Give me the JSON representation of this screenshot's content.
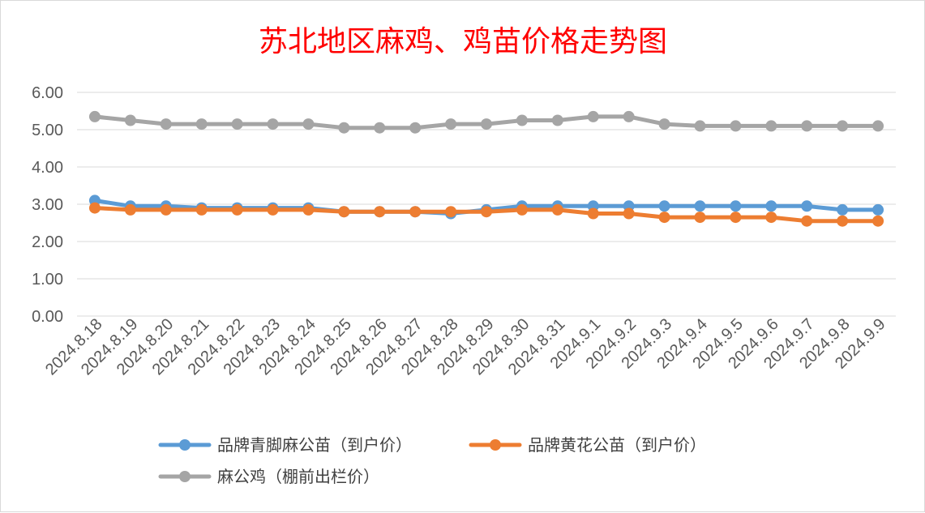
{
  "chart_data": {
    "type": "line",
    "title": "苏北地区麻鸡、鸡苗价格走势图",
    "xlabel": "",
    "ylabel": "",
    "ylim": [
      0,
      6
    ],
    "yticks": [
      "0.00",
      "1.00",
      "2.00",
      "3.00",
      "4.00",
      "5.00",
      "6.00"
    ],
    "grid": true,
    "legend_position": "bottom",
    "categories": [
      "2024.8.18",
      "2024.8.19",
      "2024.8.20",
      "2024.8.21",
      "2024.8.22",
      "2024.8.23",
      "2024.8.24",
      "2024.8.25",
      "2024.8.26",
      "2024.8.27",
      "2024.8.28",
      "2024.8.29",
      "2024.8.30",
      "2024.8.31",
      "2024.9.1",
      "2024.9.2",
      "2024.9.3",
      "2024.9.4",
      "2024.9.5",
      "2024.9.6",
      "2024.9.7",
      "2024.9.8",
      "2024.9.9"
    ],
    "series": [
      {
        "name": "品牌青脚麻公苗（到户价）",
        "color": "#5b9bd5",
        "values": [
          3.1,
          2.95,
          2.95,
          2.9,
          2.9,
          2.9,
          2.9,
          2.8,
          2.8,
          2.8,
          2.75,
          2.85,
          2.95,
          2.95,
          2.95,
          2.95,
          2.95,
          2.95,
          2.95,
          2.95,
          2.95,
          2.85,
          2.85
        ]
      },
      {
        "name": "品牌黄花公苗（到户价）",
        "color": "#ed7d31",
        "values": [
          2.9,
          2.85,
          2.85,
          2.85,
          2.85,
          2.85,
          2.85,
          2.8,
          2.8,
          2.8,
          2.8,
          2.8,
          2.85,
          2.85,
          2.75,
          2.75,
          2.65,
          2.65,
          2.65,
          2.65,
          2.55,
          2.55,
          2.55
        ]
      },
      {
        "name": "麻公鸡（棚前出栏价）",
        "color": "#a5a5a5",
        "values": [
          5.35,
          5.25,
          5.15,
          5.15,
          5.15,
          5.15,
          5.15,
          5.05,
          5.05,
          5.05,
          5.15,
          5.15,
          5.25,
          5.25,
          5.35,
          5.35,
          5.15,
          5.1,
          5.1,
          5.1,
          5.1,
          5.1,
          5.1
        ]
      }
    ]
  }
}
